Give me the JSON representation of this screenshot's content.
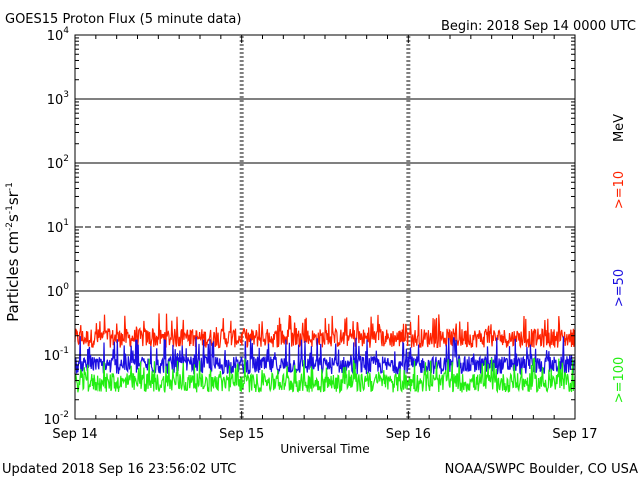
{
  "header": {
    "title": "GOES15 Proton Flux (5 minute data)",
    "begin": "Begin: 2018 Sep 14 0000 UTC"
  },
  "footer": {
    "updated": "Updated 2018 Sep 16 23:56:02 UTC",
    "source": "NOAA/SWPC Boulder, CO USA"
  },
  "right_labels": {
    "unit": "MeV",
    "ch1": ">=10",
    "ch2": ">=50",
    "ch3": ">=100"
  },
  "y_axis": {
    "label_main": "Particles cm",
    "label_s": "s",
    "label_sr": "sr",
    "exp_minus2": "-2",
    "exp_minus1": "-1",
    "ticks": [
      {
        "base": "10",
        "exp": "4",
        "value": 10000
      },
      {
        "base": "10",
        "exp": "3",
        "value": 1000
      },
      {
        "base": "10",
        "exp": "2",
        "value": 100
      },
      {
        "base": "10",
        "exp": "1",
        "value": 10
      },
      {
        "base": "10",
        "exp": "0",
        "value": 1
      },
      {
        "base": "10",
        "exp": "-1",
        "value": 0.1
      },
      {
        "base": "10",
        "exp": "-2",
        "value": 0.01
      }
    ]
  },
  "x_axis": {
    "label": "Universal Time",
    "ticks": [
      "Sep 14",
      "Sep 15",
      "Sep 16",
      "Sep 17"
    ]
  },
  "chart_data": {
    "type": "line",
    "title": "GOES15 Proton Flux (5 minute data)",
    "xlabel": "Universal Time",
    "ylabel": "Particles cm-2 s-1 sr-1",
    "y_scale": "log",
    "ylim": [
      0.01,
      10000
    ],
    "x_start": "2018-09-14 00:00",
    "x_end": "2018-09-17 00:00",
    "x_categories": [
      "Sep 14",
      "Sep 15",
      "Sep 16",
      "Sep 17"
    ],
    "threshold_lines": [
      {
        "value": 10,
        "style": "dashed"
      },
      {
        "value": 1,
        "style": "solid"
      }
    ],
    "series": [
      {
        "name": ">=10 MeV",
        "color": "#ff2200",
        "typical": 0.2,
        "range": [
          0.13,
          0.45
        ]
      },
      {
        "name": ">=50 MeV",
        "color": "#1a0ee0",
        "typical": 0.075,
        "range": [
          0.05,
          0.2
        ]
      },
      {
        "name": ">=100 MeV",
        "color": "#22ee11",
        "typical": 0.04,
        "range": [
          0.026,
          0.09
        ]
      }
    ]
  }
}
